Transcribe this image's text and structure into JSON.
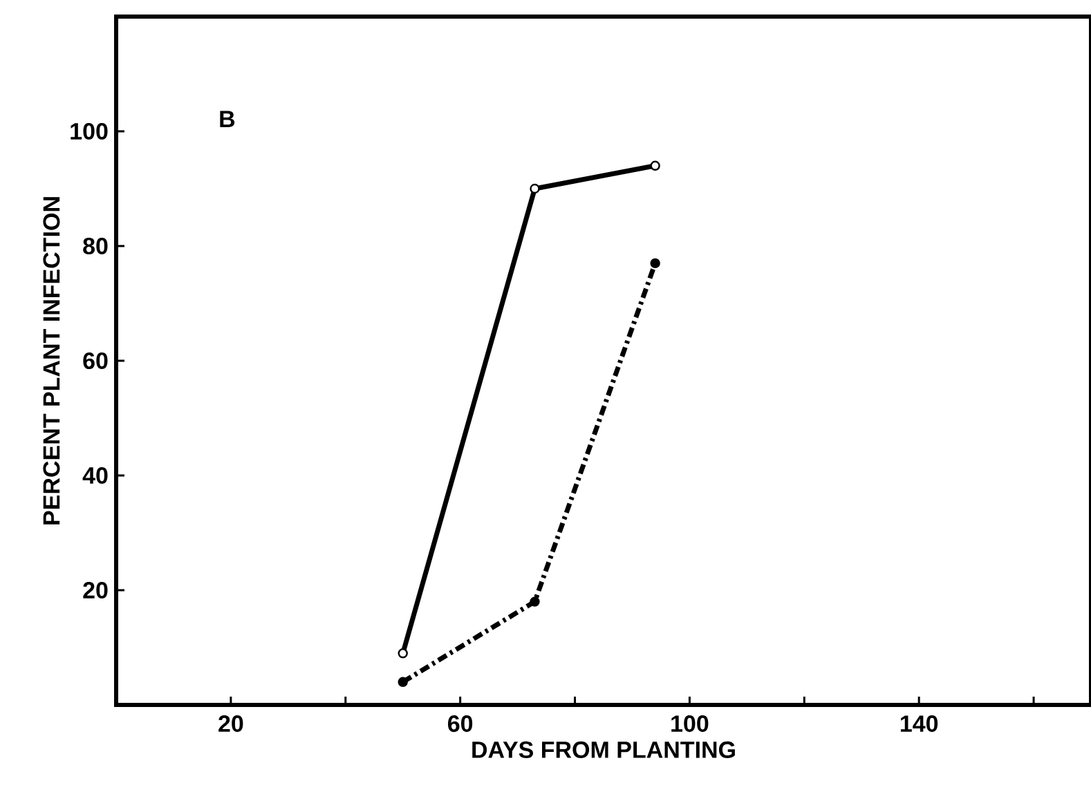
{
  "chart_data": {
    "type": "line",
    "xlabel": "DAYS FROM PLANTING",
    "ylabel": "PERCENT PLANT INFECTION",
    "annotations": [
      "B"
    ],
    "xlim": [
      0,
      170
    ],
    "ylim": [
      0,
      120
    ],
    "xticks": [
      20,
      {
        "value": 40,
        "label": null
      },
      60,
      {
        "value": 80,
        "label": null
      },
      100,
      {
        "value": 120,
        "label": null
      },
      140,
      {
        "value": 160,
        "label": null
      }
    ],
    "yticks": [
      20,
      40,
      60,
      80,
      100
    ],
    "grid": false,
    "marker": "circle",
    "series": [
      {
        "color": "#000000",
        "line_style": "solid",
        "x": [
          50,
          73,
          94
        ],
        "values": [
          9,
          90,
          94
        ]
      },
      {
        "color": "#000000",
        "line_style": "dashed",
        "x": [
          50,
          73,
          94
        ],
        "values": [
          4,
          18,
          77
        ]
      }
    ]
  }
}
